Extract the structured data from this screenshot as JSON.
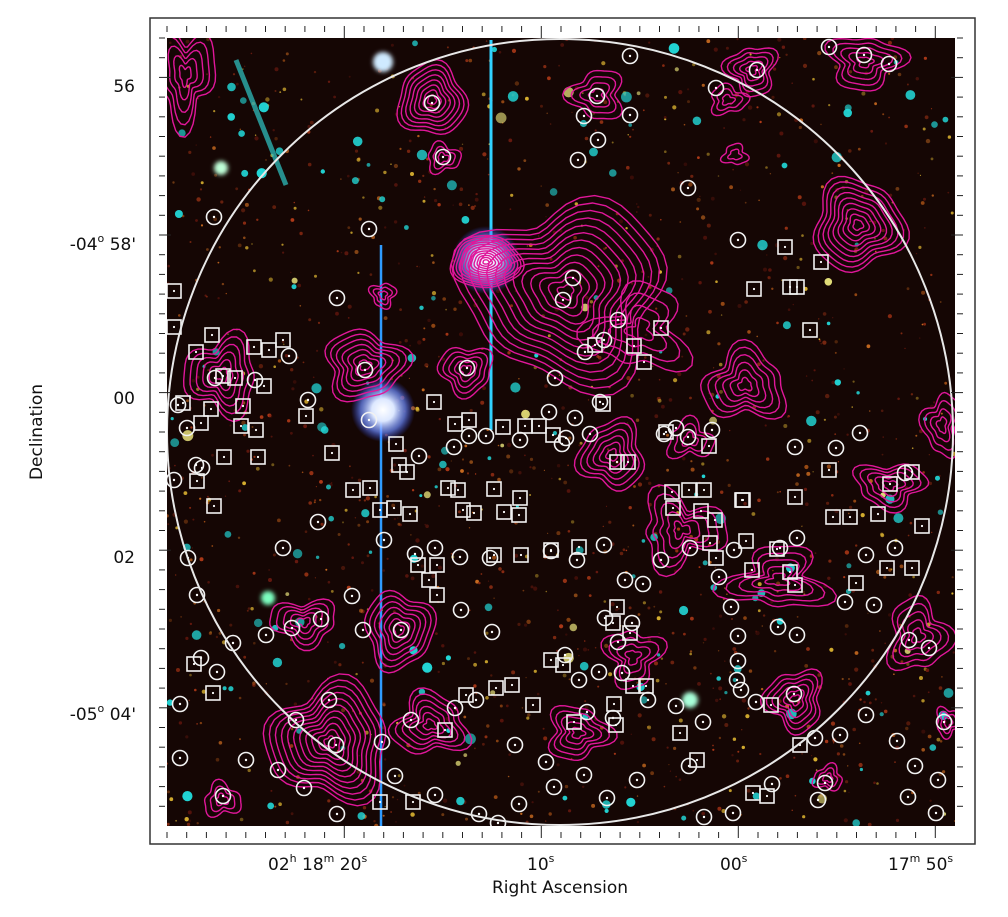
{
  "figure": {
    "x_axis_title": "Right Ascension",
    "y_axis_title": "Declination",
    "x_ticks": [
      {
        "h": "02",
        "m": "18",
        "s": "20",
        "label_parts": [
          "02",
          "h",
          " 18",
          "m",
          " 20",
          "s"
        ]
      },
      {
        "s": "10",
        "label_parts": [
          "",
          "",
          "",
          "",
          "10",
          "s"
        ]
      },
      {
        "s": "00",
        "label_parts": [
          "",
          "",
          "",
          "",
          "00",
          "s"
        ]
      },
      {
        "m": "17",
        "s": "50",
        "label_parts": [
          "",
          "",
          "17",
          "m",
          " 50",
          "s"
        ]
      }
    ],
    "y_ticks": [
      {
        "label": "56",
        "full": ""
      },
      {
        "label": "-04",
        "deg": "o",
        "min": "58'"
      },
      {
        "label": "00",
        "full": ""
      },
      {
        "label": "02",
        "full": ""
      },
      {
        "label": "-05",
        "deg": "o",
        "min": "04'"
      }
    ]
  },
  "colors": {
    "sky": "#150604",
    "contour": "#e0179a",
    "marker": "#f2f2f2",
    "bright_star": "#8fb8ff",
    "cyan_source": "#22d6d6"
  }
}
